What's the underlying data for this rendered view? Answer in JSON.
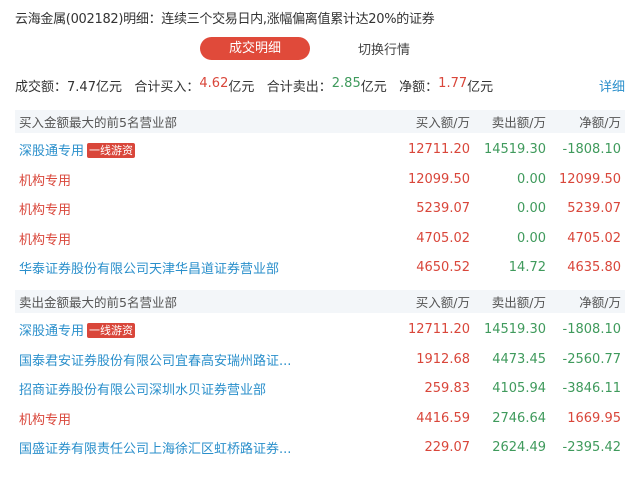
{
  "title": "云海金属(002182)明细：连续三个交易日内,涨幅偏离值累计达20%的证券",
  "tabs": {
    "active": "成交明细",
    "other": "切换行情"
  },
  "summary": {
    "turnover_label": "成交额：",
    "turnover": "7.47亿元",
    "buy_label": "合计买入：",
    "buy_value": "4.62",
    "sell_label": "合计卖出：",
    "sell_value": "2.85",
    "net_label": "净额：",
    "net_value": "1.77",
    "unit": "亿元",
    "detail": "详细"
  },
  "colors": {
    "red": "#d9463a",
    "green": "#3f9a5c",
    "blue": "#2a8fcb",
    "accent": "#e04a3a"
  },
  "buy_table": {
    "headers": [
      "买入金额最大的前5名营业部",
      "买入额/万",
      "卖出额/万",
      "净额/万"
    ],
    "rows": [
      {
        "name": "深股通专用",
        "tag": "一线游资",
        "name_color": "blue",
        "buy": "12711.20",
        "sell": "14519.30",
        "net": "-1808.10"
      },
      {
        "name": "机构专用",
        "tag": "",
        "name_color": "red",
        "buy": "12099.50",
        "sell": "0.00",
        "net": "12099.50"
      },
      {
        "name": "机构专用",
        "tag": "",
        "name_color": "red",
        "buy": "5239.07",
        "sell": "0.00",
        "net": "5239.07"
      },
      {
        "name": "机构专用",
        "tag": "",
        "name_color": "red",
        "buy": "4705.02",
        "sell": "0.00",
        "net": "4705.02"
      },
      {
        "name": "华泰证券股份有限公司天津华昌道证券营业部",
        "tag": "",
        "name_color": "blue",
        "buy": "4650.52",
        "sell": "14.72",
        "net": "4635.80"
      }
    ]
  },
  "sell_table": {
    "headers": [
      "卖出金额最大的前5名营业部",
      "买入额/万",
      "卖出额/万",
      "净额/万"
    ],
    "rows": [
      {
        "name": "深股通专用",
        "tag": "一线游资",
        "name_color": "blue",
        "buy": "12711.20",
        "sell": "14519.30",
        "net": "-1808.10"
      },
      {
        "name": "国泰君安证券股份有限公司宜春高安瑞州路证...",
        "tag": "",
        "name_color": "blue",
        "buy": "1912.68",
        "sell": "4473.45",
        "net": "-2560.77"
      },
      {
        "name": "招商证券股份有限公司深圳水贝证券营业部",
        "tag": "",
        "name_color": "blue",
        "buy": "259.83",
        "sell": "4105.94",
        "net": "-3846.11"
      },
      {
        "name": "机构专用",
        "tag": "",
        "name_color": "red",
        "buy": "4416.59",
        "sell": "2746.64",
        "net": "1669.95"
      },
      {
        "name": "国盛证券有限责任公司上海徐汇区虹桥路证券...",
        "tag": "",
        "name_color": "blue",
        "buy": "229.07",
        "sell": "2624.49",
        "net": "-2395.42"
      }
    ]
  }
}
